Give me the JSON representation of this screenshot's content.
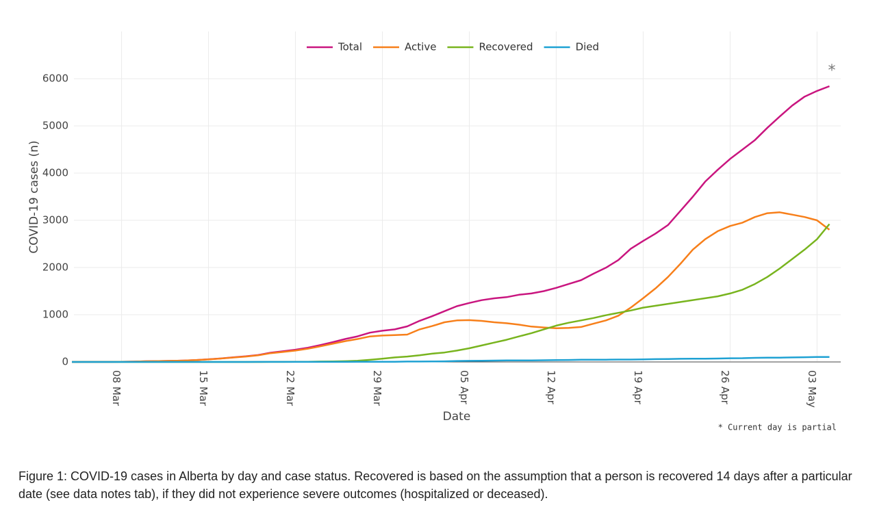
{
  "chart_data": {
    "type": "line",
    "ylabel": "COVID-19 cases (n)",
    "xlabel": "Date",
    "annotation": "*",
    "note": "* Current day is partial",
    "caption": "Figure 1: COVID-19 cases in Alberta by day and case status. Recovered is based on the assumption that a person is recovered 14 days after a particular date (see data notes tab), if they did not experience severe outcomes (hospitalized or deceased).",
    "legend": "top",
    "grid": true,
    "categories": [
      "04 Mar",
      "05 Mar",
      "06 Mar",
      "07 Mar",
      "08 Mar",
      "09 Mar",
      "10 Mar",
      "11 Mar",
      "12 Mar",
      "13 Mar",
      "14 Mar",
      "15 Mar",
      "16 Mar",
      "17 Mar",
      "18 Mar",
      "19 Mar",
      "20 Mar",
      "21 Mar",
      "22 Mar",
      "23 Mar",
      "24 Mar",
      "25 Mar",
      "26 Mar",
      "27 Mar",
      "28 Mar",
      "29 Mar",
      "30 Mar",
      "31 Mar",
      "01 Apr",
      "02 Apr",
      "03 Apr",
      "04 Apr",
      "05 Apr",
      "06 Apr",
      "07 Apr",
      "08 Apr",
      "09 Apr",
      "10 Apr",
      "11 Apr",
      "12 Apr",
      "13 Apr",
      "14 Apr",
      "15 Apr",
      "16 Apr",
      "17 Apr",
      "18 Apr",
      "19 Apr",
      "20 Apr",
      "21 Apr",
      "22 Apr",
      "23 Apr",
      "24 Apr",
      "25 Apr",
      "26 Apr",
      "27 Apr",
      "28 Apr",
      "29 Apr",
      "30 Apr",
      "01 May",
      "02 May",
      "03 May",
      "04 May"
    ],
    "xticks": [
      "08 Mar",
      "15 Mar",
      "22 Mar",
      "29 Mar",
      "05 Apr",
      "12 Apr",
      "19 Apr",
      "26 Apr",
      "03 May"
    ],
    "ylim": [
      0,
      7000
    ],
    "yticks": [
      0,
      1000,
      2000,
      3000,
      4000,
      5000,
      6000
    ],
    "series": [
      {
        "name": "Total",
        "color": "#c9157f",
        "values": [
          0,
          1,
          1,
          2,
          4,
          7,
          14,
          19,
          23,
          29,
          39,
          56,
          74,
          97,
          119,
          146,
          195,
          226,
          259,
          301,
          358,
          419,
          486,
          542,
          621,
          661,
          690,
          754,
          871,
          968,
          1075,
          1181,
          1250,
          1308,
          1348,
          1373,
          1423,
          1451,
          1500,
          1569,
          1651,
          1732,
          1870,
          1996,
          2158,
          2397,
          2562,
          2720,
          2900,
          3200,
          3500,
          3820,
          4070,
          4300,
          4500,
          4700,
          4960,
          5200,
          5430,
          5620,
          5740,
          5840
        ]
      },
      {
        "name": "Active",
        "color": "#f77f1a",
        "values": [
          0,
          1,
          1,
          2,
          4,
          7,
          14,
          19,
          23,
          29,
          39,
          55,
          72,
          94,
          115,
          140,
          185,
          212,
          240,
          280,
          330,
          385,
          440,
          485,
          540,
          560,
          570,
          580,
          690,
          760,
          840,
          880,
          885,
          870,
          840,
          820,
          790,
          750,
          730,
          715,
          720,
          740,
          810,
          880,
          980,
          1150,
          1350,
          1560,
          1800,
          2080,
          2380,
          2600,
          2770,
          2880,
          2950,
          3070,
          3150,
          3170,
          3120,
          3070,
          3000,
          2800
        ]
      },
      {
        "name": "Recovered",
        "color": "#78b41e",
        "values": [
          0,
          0,
          0,
          0,
          0,
          0,
          0,
          0,
          0,
          0,
          0,
          0,
          0,
          0,
          0,
          0,
          1,
          2,
          3,
          5,
          8,
          12,
          16,
          25,
          45,
          70,
          95,
          115,
          140,
          175,
          200,
          240,
          290,
          350,
          410,
          470,
          540,
          610,
          690,
          770,
          830,
          880,
          930,
          990,
          1040,
          1090,
          1150,
          1190,
          1230,
          1270,
          1310,
          1350,
          1390,
          1450,
          1530,
          1650,
          1800,
          1980,
          2180,
          2380,
          2600,
          2920
        ]
      },
      {
        "name": "Died",
        "color": "#1ea1d3",
        "values": [
          0,
          0,
          0,
          0,
          0,
          0,
          0,
          0,
          0,
          0,
          0,
          0,
          0,
          0,
          0,
          1,
          1,
          1,
          1,
          1,
          1,
          2,
          2,
          3,
          4,
          4,
          5,
          8,
          9,
          10,
          13,
          20,
          23,
          24,
          29,
          32,
          32,
          33,
          36,
          40,
          42,
          46,
          48,
          48,
          50,
          50,
          55,
          59,
          62,
          66,
          68,
          69,
          73,
          78,
          80,
          87,
          92,
          92,
          95,
          100,
          104,
          104
        ]
      }
    ]
  }
}
